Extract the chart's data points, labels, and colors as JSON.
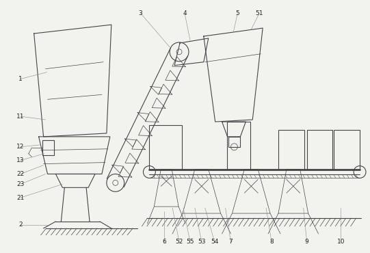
{
  "bg_color": "#f2f2ee",
  "line_color": "#444444",
  "lw": 0.8,
  "tlw": 0.5,
  "figsize": [
    5.41,
    3.7
  ],
  "dpi": 100
}
